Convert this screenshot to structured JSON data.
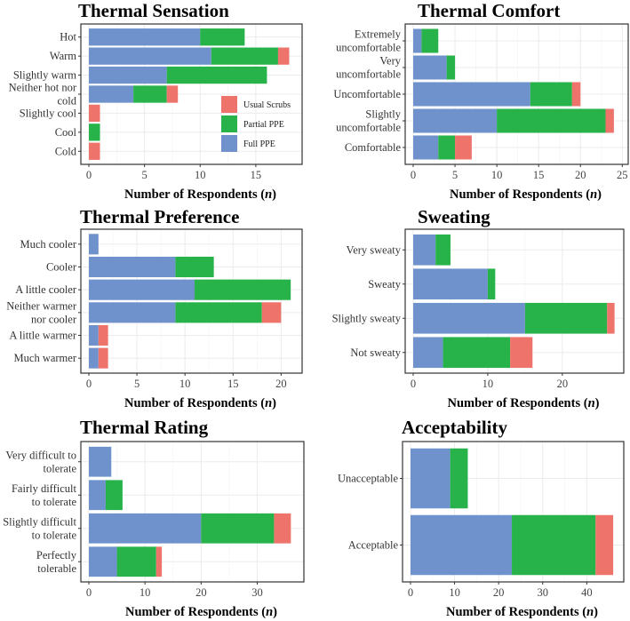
{
  "chart_data": [
    {
      "type": "bar",
      "stacked": true,
      "orientation": "horizontal",
      "title": "Thermal Sensation",
      "xlabel": "Number of Respondents (n)",
      "xlim": [
        0,
        19
      ],
      "xticks": [
        0,
        5,
        10,
        15
      ],
      "categories": [
        "Hot",
        "Warm",
        "Slightly warm",
        "Neither hot nor\ncold",
        "Slightly cool",
        "Cool",
        "Cold"
      ],
      "series": [
        {
          "name": "Full PPE",
          "values": [
            10,
            11,
            7,
            4,
            0,
            0,
            0
          ]
        },
        {
          "name": "Partial PPE",
          "values": [
            4,
            6,
            9,
            3,
            0,
            1,
            0
          ]
        },
        {
          "name": "Usual Scrubs",
          "values": [
            0,
            1,
            0,
            1,
            1,
            0,
            1
          ]
        }
      ],
      "legend": {
        "placement": "bottom-right",
        "entries": [
          "Usual Scrubs",
          "Partial PPE",
          "Full PPE"
        ]
      }
    },
    {
      "type": "bar",
      "stacked": true,
      "orientation": "horizontal",
      "title": "Thermal Comfort",
      "xlabel": "Number of Respondents (n)",
      "xlim": [
        0,
        25.5
      ],
      "xticks": [
        0,
        5,
        10,
        15,
        20,
        25
      ],
      "categories": [
        "Extremely\nuncomfortable",
        "Very\nuncomfortable",
        "Uncomfortable",
        "Slightly\nuncomfortable",
        "Comfortable"
      ],
      "series": [
        {
          "name": "Full PPE",
          "values": [
            1,
            4,
            14,
            10,
            3
          ]
        },
        {
          "name": "Partial PPE",
          "values": [
            2,
            1,
            5,
            13,
            2
          ]
        },
        {
          "name": "Usual Scrubs",
          "values": [
            0,
            0,
            1,
            1,
            2
          ]
        }
      ]
    },
    {
      "type": "bar",
      "stacked": true,
      "orientation": "horizontal",
      "title": "Thermal Preference",
      "xlabel": "Number of Respondents (n)",
      "xlim": [
        0,
        22
      ],
      "xticks": [
        0,
        5,
        10,
        15,
        20
      ],
      "categories": [
        "Much cooler",
        "Cooler",
        "A little cooler",
        "Neither warmer\nnor cooler",
        "A little warmer",
        "Much warmer"
      ],
      "series": [
        {
          "name": "Full PPE",
          "values": [
            1,
            9,
            11,
            9,
            1,
            1
          ]
        },
        {
          "name": "Partial PPE",
          "values": [
            0,
            4,
            10,
            9,
            0,
            0
          ]
        },
        {
          "name": "Usual Scrubs",
          "values": [
            0,
            0,
            0,
            2,
            1,
            1
          ]
        }
      ]
    },
    {
      "type": "bar",
      "stacked": true,
      "orientation": "horizontal",
      "title": "Sweating",
      "xlabel": "Number of Respondents (n)",
      "xlim": [
        0,
        28
      ],
      "xticks": [
        0,
        10,
        20
      ],
      "categories": [
        "Very sweaty",
        "Sweaty",
        "Slightly sweaty",
        "Not sweaty"
      ],
      "series": [
        {
          "name": "Full PPE",
          "values": [
            3,
            10,
            15,
            4
          ]
        },
        {
          "name": "Partial PPE",
          "values": [
            2,
            1,
            11,
            9
          ]
        },
        {
          "name": "Usual Scrubs",
          "values": [
            0,
            0,
            1,
            3
          ]
        }
      ]
    },
    {
      "type": "bar",
      "stacked": true,
      "orientation": "horizontal",
      "title": "Thermal Rating",
      "xlabel": "Number of Respondents (n)",
      "xlim": [
        0,
        38
      ],
      "xticks": [
        0,
        10,
        20,
        30
      ],
      "categories": [
        "Very difficult to\ntolerate",
        "Fairly difficult\nto tolerate",
        "Slightly difficult\nto tolerate",
        "Perfectly\ntolerable"
      ],
      "series": [
        {
          "name": "Full PPE",
          "values": [
            4,
            3,
            20,
            5
          ]
        },
        {
          "name": "Partial PPE",
          "values": [
            0,
            3,
            13,
            7
          ]
        },
        {
          "name": "Usual Scrubs",
          "values": [
            0,
            0,
            3,
            1
          ]
        }
      ]
    },
    {
      "type": "bar",
      "stacked": true,
      "orientation": "horizontal",
      "title": "Acceptability",
      "xlabel": "Number of Respondents (n)",
      "xlim": [
        0,
        48
      ],
      "xticks": [
        0,
        10,
        20,
        30,
        40
      ],
      "categories": [
        "Unacceptable",
        "Acceptable"
      ],
      "series": [
        {
          "name": "Full PPE",
          "values": [
            9,
            23
          ]
        },
        {
          "name": "Partial PPE",
          "values": [
            4,
            19
          ]
        },
        {
          "name": "Usual Scrubs",
          "values": [
            0,
            4
          ]
        }
      ]
    }
  ],
  "colors": {
    "Full PPE": "#6f92cc",
    "Partial PPE": "#27b24a",
    "Usual Scrubs": "#ee736a"
  }
}
